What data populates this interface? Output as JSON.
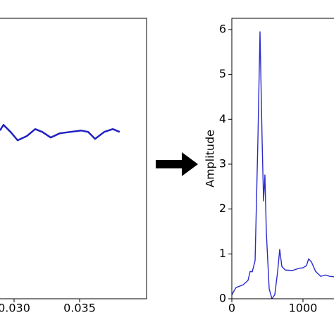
{
  "chart_data": [
    {
      "type": "line",
      "x": [
        0.02892,
        0.02919,
        0.02973,
        0.03027,
        0.03097,
        0.03161,
        0.03215,
        0.0328,
        0.03349,
        0.0343,
        0.03511,
        0.03565,
        0.03618,
        0.03688,
        0.03753,
        0.03806
      ],
      "values": [
        0.2,
        0.24,
        0.19,
        0.13,
        0.16,
        0.21,
        0.19,
        0.15,
        0.18,
        0.19,
        0.2,
        0.19,
        0.14,
        0.19,
        0.21,
        0.19
      ],
      "color": "#2020c0",
      "xlim": [
        0.02785,
        0.04011
      ],
      "ylim": [
        -1,
        1
      ],
      "xticks": [
        {
          "value": 0.03,
          "label": "0.030"
        },
        {
          "value": 0.035,
          "label": "0.035"
        }
      ]
    },
    {
      "type": "line",
      "y_label": "Amplitude",
      "x": [
        0,
        59,
        158,
        228,
        257,
        287,
        327,
        366,
        396,
        426,
        446,
        465,
        485,
        525,
        564,
        604,
        644,
        673,
        703,
        752,
        851,
        950,
        1000,
        1050,
        1079,
        1119,
        1178,
        1248,
        1317,
        1376,
        1436
      ],
      "values": [
        0.09,
        0.25,
        0.31,
        0.41,
        0.61,
        0.6,
        0.85,
        3.5,
        5.95,
        3.5,
        2.18,
        2.76,
        1.48,
        0.22,
        0.0,
        0.09,
        0.61,
        1.1,
        0.72,
        0.64,
        0.63,
        0.68,
        0.69,
        0.74,
        0.89,
        0.82,
        0.61,
        0.5,
        0.53,
        0.5,
        0.49
      ],
      "color": "#2a2acc",
      "xlim": [
        0,
        1436
      ],
      "ylim": [
        0,
        6.25
      ],
      "xticks": [
        0,
        1000
      ],
      "yticks": [
        0,
        1,
        2,
        3,
        4,
        5,
        6
      ]
    }
  ]
}
